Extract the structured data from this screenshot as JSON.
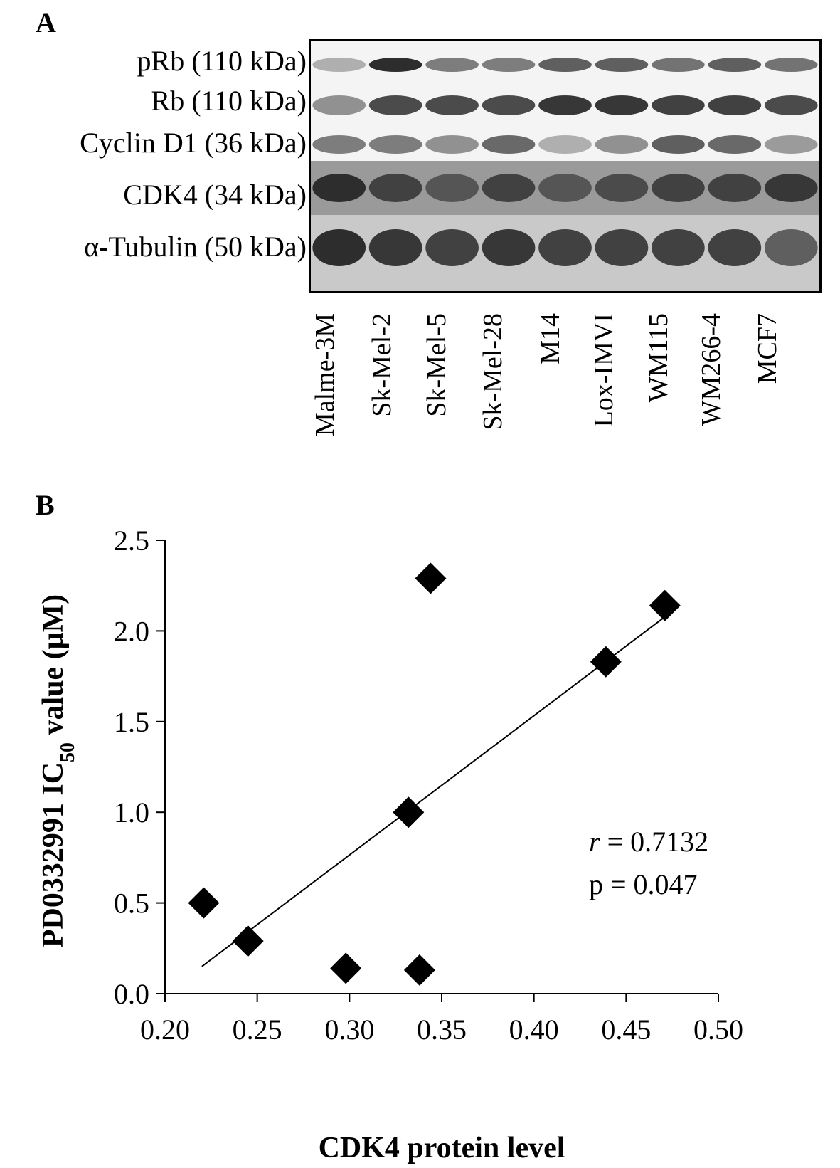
{
  "panel_a": {
    "letter": "A",
    "rows": [
      {
        "label": "pRb (110 kDa)",
        "intensity": [
          0.3,
          0.95,
          0.55,
          0.55,
          0.7,
          0.7,
          0.6,
          0.7,
          0.6
        ]
      },
      {
        "label": "Rb (110 kDa)",
        "intensity": [
          0.45,
          0.8,
          0.8,
          0.8,
          0.9,
          0.9,
          0.85,
          0.85,
          0.8
        ]
      },
      {
        "label": "Cyclin D1 (36 kDa)",
        "intensity": [
          0.55,
          0.55,
          0.45,
          0.65,
          0.3,
          0.45,
          0.7,
          0.65,
          0.4
        ]
      },
      {
        "label": "CDK4 (34 kDa)",
        "intensity": [
          0.95,
          0.85,
          0.75,
          0.85,
          0.75,
          0.8,
          0.85,
          0.85,
          0.9
        ]
      },
      {
        "label": "α-Tubulin (50 kDa)",
        "intensity": [
          0.95,
          0.9,
          0.85,
          0.9,
          0.85,
          0.85,
          0.85,
          0.85,
          0.7
        ]
      }
    ],
    "lanes": [
      "Malme-3M",
      "Sk-Mel-2",
      "Sk-Mel-5",
      "Sk-Mel-28",
      "M14",
      "Lox-IMVI",
      "WM115",
      "WM266-4",
      "MCF7"
    ]
  },
  "panel_b": {
    "letter": "B",
    "stat_r_symbol": "r",
    "stat_r_rest": " = 0.7132",
    "stat_p": "p = 0.047"
  },
  "chart_data": {
    "type": "scatter",
    "title": "",
    "xlabel": "CDK4 protein level",
    "ylabel_main": "PD0332991 IC",
    "ylabel_sub": "50",
    "ylabel_end": " value (μM)",
    "xlim": [
      0.2,
      0.5
    ],
    "ylim": [
      0.0,
      2.5
    ],
    "xticks": [
      "0.20",
      "0.25",
      "0.30",
      "0.35",
      "0.40",
      "0.45",
      "0.50"
    ],
    "yticks": [
      "0.0",
      "0.5",
      "1.0",
      "1.5",
      "2.0",
      "2.5"
    ],
    "points": [
      {
        "x": 0.221,
        "y": 0.5
      },
      {
        "x": 0.245,
        "y": 0.29
      },
      {
        "x": 0.298,
        "y": 0.14
      },
      {
        "x": 0.332,
        "y": 1.0
      },
      {
        "x": 0.338,
        "y": 0.13
      },
      {
        "x": 0.344,
        "y": 2.29
      },
      {
        "x": 0.439,
        "y": 1.83
      },
      {
        "x": 0.471,
        "y": 2.14
      }
    ],
    "trendline": {
      "x": [
        0.22,
        0.47
      ],
      "y": [
        0.15,
        2.07
      ]
    },
    "grid": false,
    "legend": "none"
  }
}
